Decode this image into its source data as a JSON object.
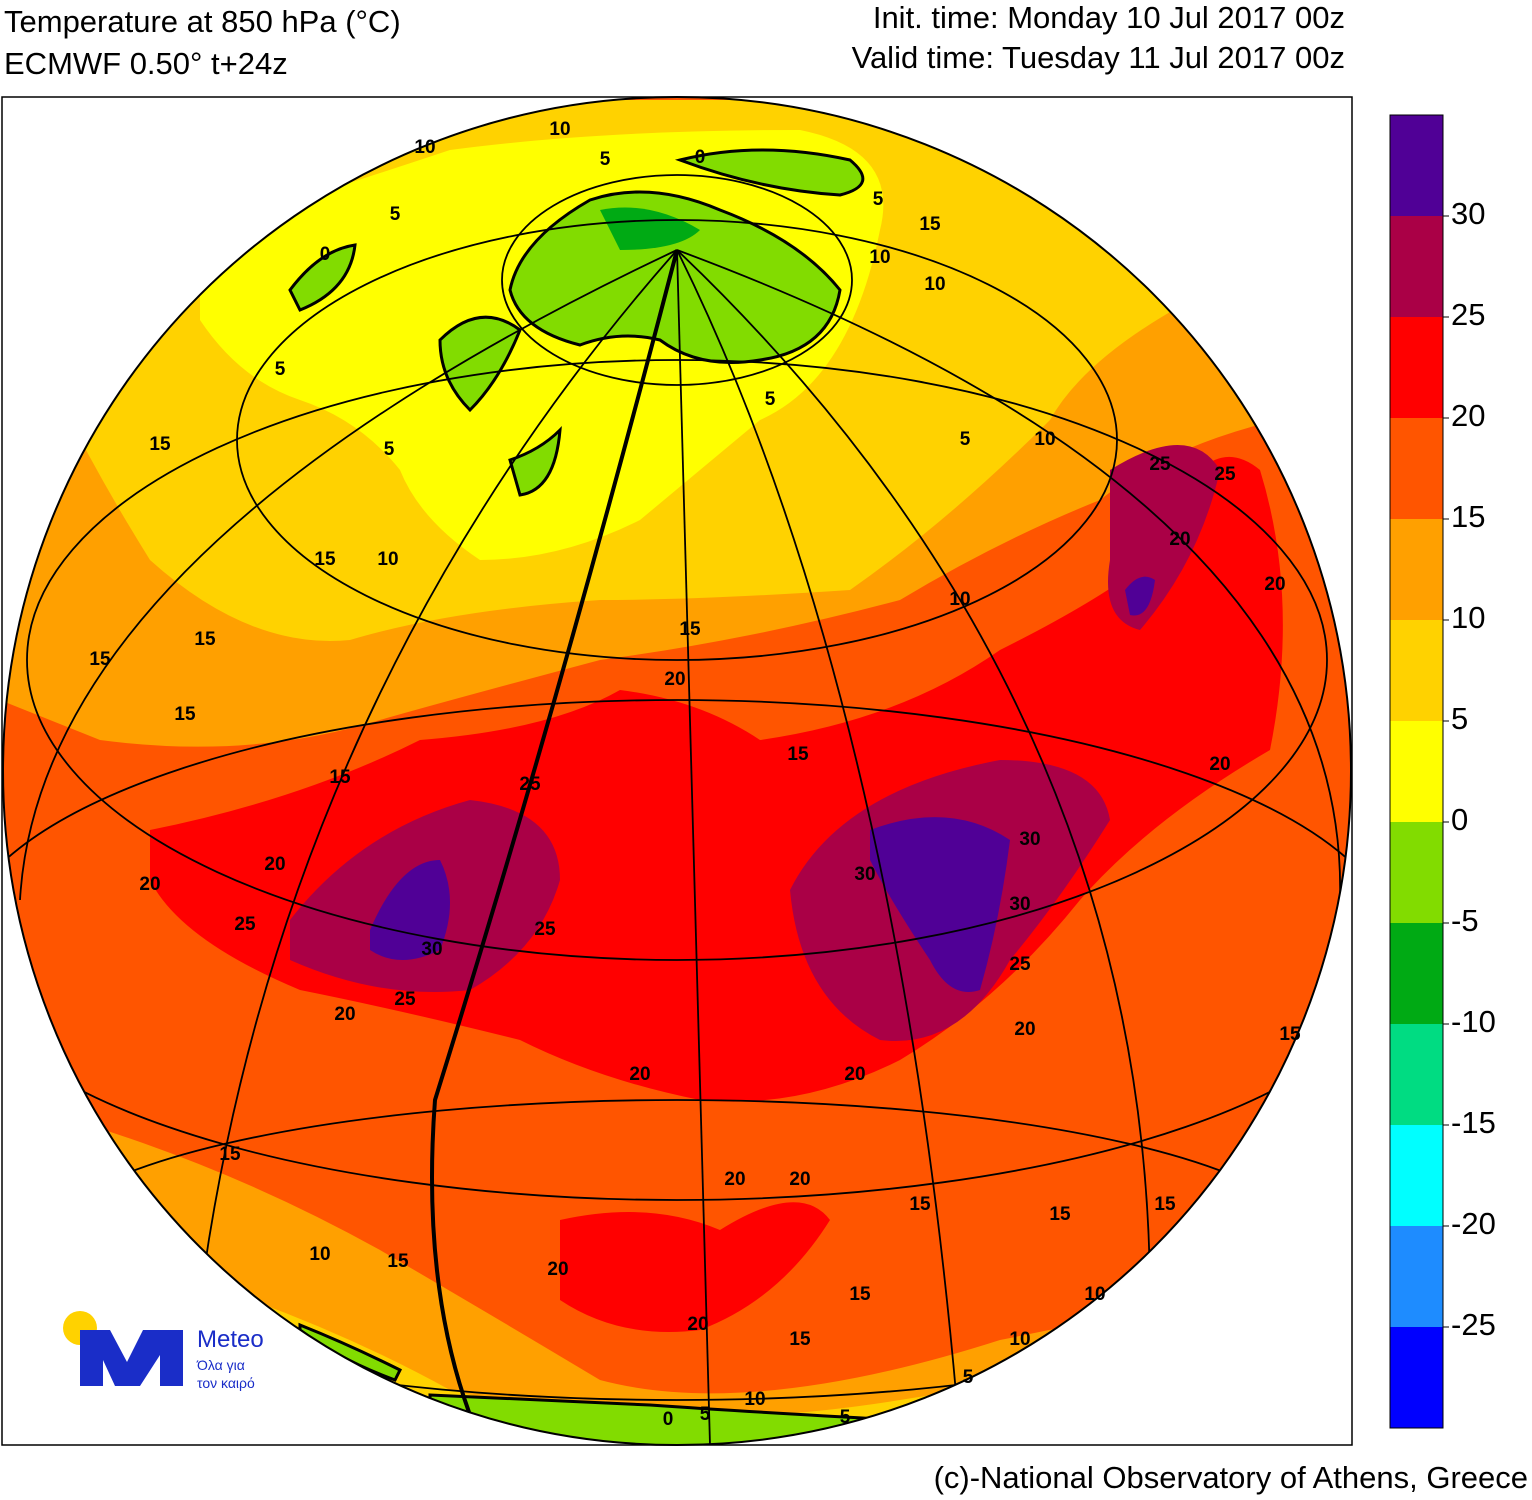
{
  "header": {
    "title": "Temperature at 850 hPa (°C)",
    "model": "ECMWF 0.50° t+24z",
    "init": "Init. time: Monday 10 Jul 2017 00z",
    "valid": "Valid time: Tuesday 11 Jul 2017 00z"
  },
  "colorbar": {
    "levels": [
      -25,
      -20,
      -15,
      -10,
      -5,
      0,
      5,
      10,
      15,
      20,
      25,
      30
    ],
    "colors": [
      "#0000ff",
      "#1e8cff",
      "#00ffff",
      "#00dc82",
      "#00aa14",
      "#82dc00",
      "#ffff00",
      "#ffd200",
      "#ffa000",
      "#ff5500",
      "#ff0000",
      "#aa0046",
      "#500096"
    ]
  },
  "contour_labels": [
    5,
    10,
    15,
    15,
    15,
    15,
    20,
    20,
    25,
    30,
    25,
    20,
    25,
    25,
    20,
    15,
    15,
    30,
    30,
    30,
    25,
    20,
    20,
    20,
    15,
    15,
    10,
    20,
    20,
    20,
    15,
    15,
    15,
    10,
    10,
    15,
    20,
    20,
    20,
    25,
    25,
    10,
    5,
    10,
    15,
    5,
    10,
    15,
    15,
    5,
    5,
    0,
    10,
    5,
    0,
    5,
    10,
    10,
    5,
    0,
    5,
    5,
    15,
    15,
    20,
    10
  ],
  "logo": {
    "name": "Meteo",
    "tagline1": "Όλα για",
    "tagline2": "τον καιρό"
  },
  "credit": "(c)-National Observatory of Athens, Greece"
}
